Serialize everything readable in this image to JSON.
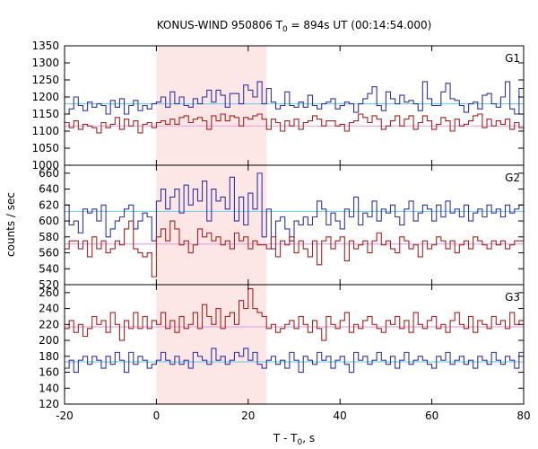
{
  "figure": {
    "title": {
      "main": "KONUS-WIND 950806 T",
      "sub": "0",
      "rest": " = 894s UT (00:14:54.000)"
    },
    "ylabel": "counts / sec",
    "xlabel": {
      "main": "T - T",
      "sub": "0",
      "rest": ", s"
    }
  },
  "chart_data": [
    {
      "type": "line",
      "panel": "G1",
      "xlim": [
        -20,
        80
      ],
      "ylim": [
        1000,
        1350
      ],
      "xticks": [
        -20,
        0,
        20,
        40,
        60,
        80
      ],
      "xtick_labels_shown": false,
      "yticks": [
        1000,
        1050,
        1100,
        1150,
        1200,
        1250,
        1300,
        1350
      ],
      "highlight_interval": [
        0,
        24
      ],
      "series": [
        {
          "color": "#3333aa",
          "step": 1.0,
          "x_start": -20,
          "background": 1180,
          "background_color": "#7fd0ea",
          "values": [
            1150,
            1165,
            1200,
            1175,
            1160,
            1185,
            1170,
            1180,
            1175,
            1150,
            1190,
            1170,
            1195,
            1150,
            1175,
            1190,
            1160,
            1175,
            1165,
            1180,
            1185,
            1200,
            1170,
            1215,
            1180,
            1200,
            1175,
            1170,
            1195,
            1180,
            1200,
            1220,
            1185,
            1220,
            1205,
            1170,
            1210,
            1210,
            1180,
            1235,
            1220,
            1200,
            1245,
            1180,
            1225,
            1185,
            1165,
            1175,
            1215,
            1175,
            1170,
            1185,
            1170,
            1205,
            1175,
            1165,
            1180,
            1185,
            1195,
            1165,
            1175,
            1185,
            1180,
            1155,
            1180,
            1195,
            1210,
            1230,
            1175,
            1160,
            1215,
            1195,
            1180,
            1205,
            1185,
            1190,
            1180,
            1160,
            1245,
            1195,
            1175,
            1175,
            1215,
            1240,
            1195,
            1190,
            1175,
            1155,
            1180,
            1185,
            1165,
            1205,
            1210,
            1180,
            1170,
            1200,
            1245,
            1165,
            1150,
            1225
          ]
        },
        {
          "color": "#aa2222",
          "step": 1.0,
          "x_start": -20,
          "background": 1115,
          "background_color": "#e7a6e7",
          "values": [
            1125,
            1110,
            1130,
            1105,
            1120,
            1115,
            1110,
            1095,
            1125,
            1110,
            1120,
            1140,
            1105,
            1135,
            1115,
            1130,
            1095,
            1120,
            1125,
            1110,
            1125,
            1130,
            1120,
            1135,
            1120,
            1140,
            1145,
            1125,
            1135,
            1140,
            1130,
            1105,
            1145,
            1130,
            1150,
            1130,
            1145,
            1140,
            1115,
            1140,
            1135,
            1145,
            1150,
            1135,
            1105,
            1135,
            1125,
            1100,
            1130,
            1115,
            1135,
            1105,
            1125,
            1130,
            1145,
            1135,
            1115,
            1130,
            1130,
            1115,
            1120,
            1100,
            1125,
            1130,
            1150,
            1140,
            1125,
            1145,
            1135,
            1105,
            1115,
            1130,
            1145,
            1115,
            1135,
            1145,
            1105,
            1125,
            1145,
            1130,
            1105,
            1120,
            1140,
            1130,
            1100,
            1135,
            1115,
            1120,
            1130,
            1145,
            1150,
            1110,
            1135,
            1115,
            1130,
            1120,
            1135,
            1105,
            1125,
            1110
          ]
        }
      ],
      "label": "G1"
    },
    {
      "type": "line",
      "panel": "G2",
      "xlim": [
        -20,
        80
      ],
      "ylim": [
        520,
        670
      ],
      "xticks": [
        -20,
        0,
        20,
        40,
        60,
        80
      ],
      "xtick_labels_shown": false,
      "yticks": [
        520,
        540,
        560,
        580,
        600,
        620,
        640,
        660
      ],
      "highlight_interval": [
        0,
        24
      ],
      "series": [
        {
          "color": "#3333aa",
          "step": 1.0,
          "x_start": -20,
          "background": 612,
          "background_color": "#7fd0ea",
          "values": [
            620,
            595,
            600,
            585,
            615,
            610,
            615,
            600,
            620,
            580,
            590,
            600,
            605,
            615,
            620,
            590,
            600,
            610,
            605,
            575,
            625,
            640,
            615,
            630,
            640,
            610,
            645,
            620,
            640,
            625,
            650,
            600,
            640,
            625,
            630,
            615,
            655,
            600,
            630,
            595,
            635,
            615,
            660,
            580,
            615,
            565,
            600,
            605,
            590,
            575,
            600,
            595,
            605,
            595,
            605,
            625,
            615,
            595,
            610,
            600,
            590,
            615,
            605,
            630,
            595,
            610,
            605,
            625,
            600,
            615,
            610,
            620,
            605,
            595,
            615,
            625,
            600,
            610,
            620,
            615,
            600,
            620,
            605,
            625,
            610,
            615,
            605,
            620,
            600,
            610,
            615,
            605,
            620,
            610,
            615,
            605,
            620,
            610,
            615,
            620
          ]
        },
        {
          "color": "#aa2222",
          "step": 1.0,
          "x_start": -20,
          "background": 571,
          "background_color": "#e7a6e7",
          "values": [
            565,
            575,
            575,
            565,
            575,
            555,
            580,
            565,
            575,
            560,
            565,
            575,
            570,
            590,
            600,
            565,
            560,
            555,
            560,
            530,
            580,
            590,
            575,
            600,
            590,
            570,
            575,
            560,
            570,
            590,
            580,
            585,
            575,
            580,
            570,
            575,
            565,
            585,
            575,
            580,
            565,
            575,
            570,
            570,
            565,
            580,
            555,
            575,
            570,
            580,
            560,
            575,
            565,
            555,
            575,
            545,
            575,
            580,
            565,
            575,
            580,
            550,
            575,
            565,
            570,
            575,
            560,
            575,
            585,
            570,
            575,
            565,
            560,
            580,
            575,
            565,
            570,
            555,
            575,
            565,
            570,
            580,
            575,
            565,
            575,
            560,
            570,
            575,
            565,
            580,
            575,
            570,
            565,
            575,
            570,
            575,
            565,
            570,
            575,
            575
          ]
        }
      ],
      "label": "G2"
    },
    {
      "type": "line",
      "panel": "G3",
      "xlim": [
        -20,
        80
      ],
      "ylim": [
        120,
        270
      ],
      "xticks": [
        -20,
        0,
        20,
        40,
        60,
        80
      ],
      "xtick_labels": [
        "-20",
        "0",
        "20",
        "40",
        "60",
        "80"
      ],
      "yticks": [
        120,
        140,
        160,
        180,
        200,
        220,
        240,
        260
      ],
      "highlight_interval": [
        0,
        24
      ],
      "series": [
        {
          "color": "#3333aa",
          "step": 1.0,
          "x_start": -20,
          "background": 173,
          "background_color": "#7fd0ea",
          "values": [
            165,
            175,
            160,
            175,
            180,
            170,
            180,
            175,
            165,
            180,
            170,
            185,
            175,
            160,
            185,
            170,
            180,
            175,
            165,
            170,
            175,
            185,
            175,
            170,
            180,
            170,
            175,
            165,
            185,
            180,
            175,
            170,
            190,
            175,
            180,
            170,
            175,
            185,
            180,
            190,
            175,
            185,
            170,
            165,
            175,
            180,
            170,
            175,
            165,
            185,
            175,
            160,
            180,
            175,
            170,
            185,
            175,
            180,
            165,
            175,
            180,
            170,
            160,
            185,
            175,
            180,
            170,
            175,
            185,
            175,
            170,
            180,
            165,
            175,
            185,
            170,
            175,
            180,
            175,
            170,
            165,
            180,
            175,
            185,
            170,
            175,
            180,
            170,
            175,
            165,
            180,
            175,
            170,
            185,
            175,
            170,
            180,
            175,
            165,
            185
          ]
        },
        {
          "color": "#aa2222",
          "step": 1.0,
          "x_start": -20,
          "background": 217,
          "background_color": "#e7a6e7",
          "values": [
            215,
            225,
            210,
            220,
            205,
            215,
            230,
            220,
            225,
            210,
            235,
            220,
            200,
            225,
            215,
            235,
            215,
            230,
            215,
            225,
            220,
            235,
            215,
            225,
            210,
            230,
            215,
            220,
            235,
            215,
            245,
            230,
            220,
            240,
            215,
            230,
            235,
            220,
            250,
            240,
            265,
            240,
            235,
            230,
            215,
            220,
            210,
            215,
            220,
            225,
            215,
            230,
            220,
            210,
            225,
            215,
            200,
            230,
            220,
            215,
            225,
            235,
            210,
            220,
            215,
            225,
            230,
            220,
            215,
            210,
            225,
            220,
            230,
            215,
            225,
            210,
            235,
            220,
            215,
            225,
            230,
            215,
            220,
            210,
            225,
            235,
            220,
            215,
            230,
            210,
            225,
            220,
            215,
            230,
            220,
            225,
            215,
            235,
            220,
            225
          ]
        }
      ],
      "label": "G3"
    }
  ]
}
